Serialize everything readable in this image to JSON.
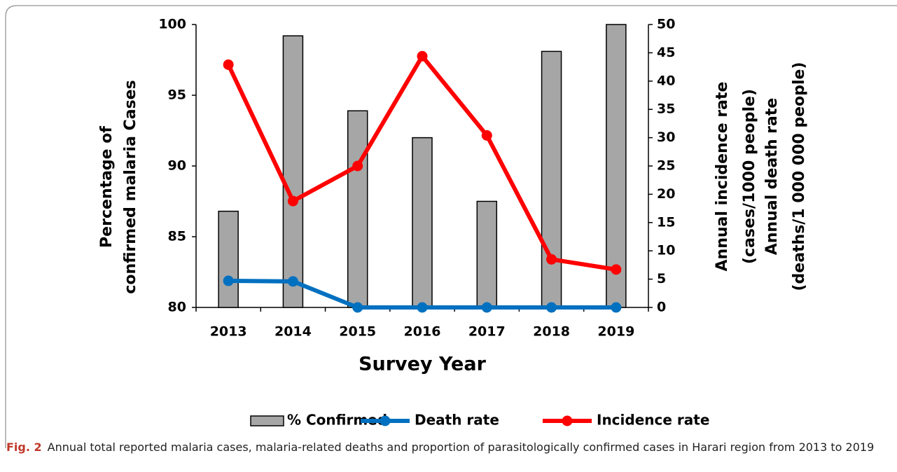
{
  "chart_data": {
    "type": "bar_line",
    "categories": [
      "2013",
      "2014",
      "2015",
      "2016",
      "2017",
      "2018",
      "2019"
    ],
    "xlabel": "Survey Year",
    "ylabel": [
      "Percentage of",
      "confirmed malaria Cases"
    ],
    "y2labels": [
      [
        "Annual incidence rate",
        "(cases/1000 people)"
      ],
      [
        "Annual death rate",
        "(deaths/1 000 000 people)"
      ]
    ],
    "ylim": [
      80,
      100
    ],
    "yticks": [
      80,
      85,
      90,
      95,
      100
    ],
    "y2lim": [
      0,
      50
    ],
    "y2ticks": [
      0,
      5,
      10,
      15,
      20,
      25,
      30,
      35,
      40,
      45,
      50
    ],
    "series": [
      {
        "name": "% Confirmed",
        "type": "bar",
        "color": "#a6a6a6",
        "values": [
          86.8,
          99.2,
          93.9,
          92.0,
          87.5,
          98.1,
          100
        ]
      },
      {
        "name": "Death rate",
        "type": "line",
        "axis": "y2",
        "color": "#0070c0",
        "values": [
          4.7,
          4.6,
          0,
          0,
          0,
          0,
          0
        ]
      },
      {
        "name": "Incidence rate",
        "type": "line",
        "axis": "y2",
        "color": "#ff0000",
        "values": [
          42.9,
          18.8,
          25.0,
          44.4,
          30.4,
          8.5,
          6.7
        ]
      }
    ],
    "legend": "bottom"
  },
  "caption": {
    "label": "Fig. 2",
    "text": "Annual total reported malaria cases, malaria-related deaths and proportion of parasitologically confirmed cases in Harari region from 2013 to 2019"
  }
}
